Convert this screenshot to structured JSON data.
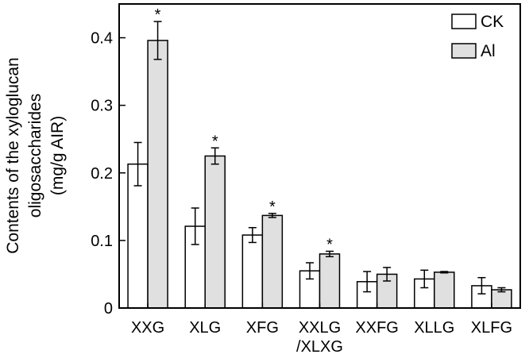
{
  "chart_data": {
    "type": "bar",
    "ylabel_line1": "Contents of the xyloglucan",
    "ylabel_line2": "oligosaccharides",
    "ylabel_line3": "(mg/g AIR)",
    "ylim": [
      0,
      0.45
    ],
    "yticks": [
      0,
      0.1,
      0.2,
      0.3,
      0.4
    ],
    "ytick_labels": [
      "0",
      "0.1",
      "0.2",
      "0.3",
      "0.4"
    ],
    "grid": false,
    "legend_position": "top-right",
    "categories": [
      [
        "XXG"
      ],
      [
        "XLG"
      ],
      [
        "XFG"
      ],
      [
        "XXLG",
        "/XLXG"
      ],
      [
        "XXFG"
      ],
      [
        "XLLG"
      ],
      [
        "XLFG"
      ]
    ],
    "series": [
      {
        "name": "CK",
        "color": "#ffffff",
        "values": [
          0.213,
          0.121,
          0.108,
          0.055,
          0.039,
          0.043,
          0.033
        ],
        "errors": [
          0.032,
          0.027,
          0.011,
          0.012,
          0.015,
          0.013,
          0.012
        ],
        "significance": [
          "",
          "",
          "",
          "",
          "",
          "",
          ""
        ]
      },
      {
        "name": "Al",
        "color": "#e0e0e0",
        "values": [
          0.396,
          0.225,
          0.137,
          0.08,
          0.05,
          0.053,
          0.027
        ],
        "errors": [
          0.028,
          0.012,
          0.003,
          0.004,
          0.01,
          0.001,
          0.003
        ],
        "significance": [
          "*",
          "*",
          "*",
          "*",
          "",
          "",
          ""
        ]
      }
    ]
  }
}
